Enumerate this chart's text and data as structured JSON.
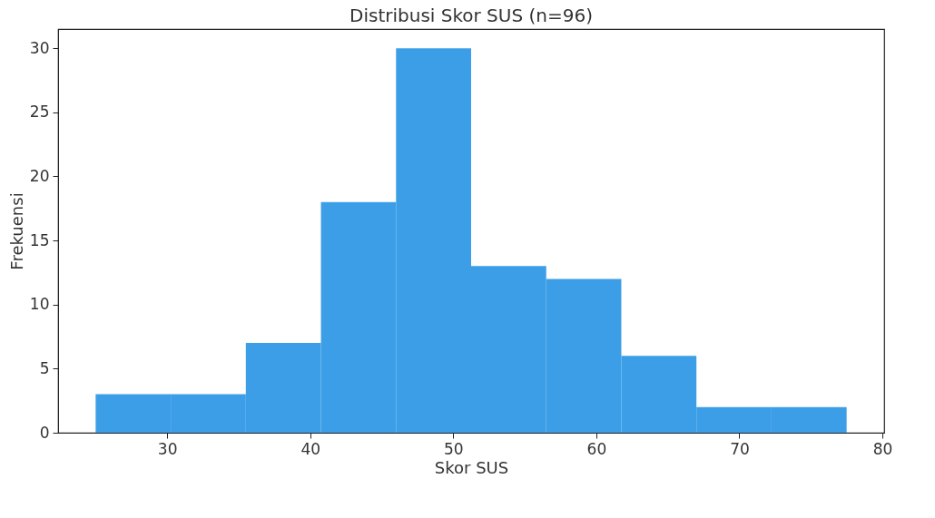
{
  "chart_data": {
    "type": "histogram",
    "title": "Distribusi Skor SUS (n=96)",
    "xlabel": "Skor SUS",
    "ylabel": "Frekuensi",
    "bins": [
      25,
      30.25,
      35.5,
      40.75,
      46,
      51.25,
      56.5,
      61.75,
      67,
      72.25,
      77.5
    ],
    "values": [
      3,
      3,
      7,
      18,
      30,
      13,
      12,
      6,
      2,
      2
    ],
    "color": "#3d9ee8",
    "xlim": [
      22.375,
      80.125
    ],
    "xticks": [
      30,
      40,
      50,
      60,
      70,
      80
    ],
    "ylim": [
      0,
      31.5
    ],
    "yticks": [
      0,
      5,
      10,
      15,
      20,
      25,
      30
    ],
    "grid": false
  }
}
